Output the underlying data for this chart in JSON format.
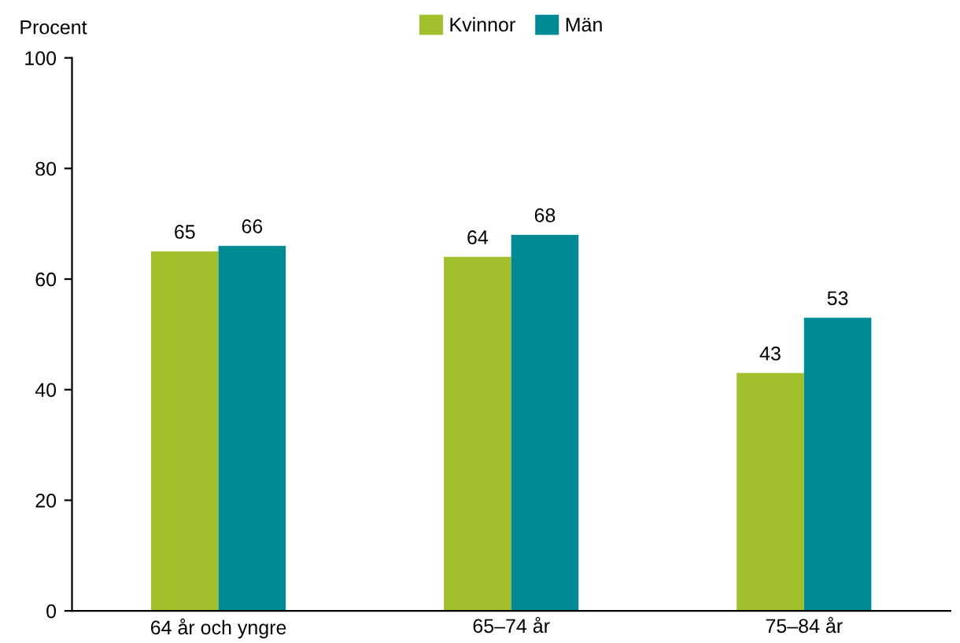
{
  "chart_data": {
    "type": "bar",
    "ylabel": "Procent",
    "categories": [
      "64 år och yngre",
      "65–74 år",
      "75–84 år"
    ],
    "series": [
      {
        "name": "Kvinnor",
        "color": "#a0bf2a",
        "values": [
          65,
          64,
          43
        ]
      },
      {
        "name": "Män",
        "color": "#008a93",
        "values": [
          66,
          68,
          53
        ]
      }
    ],
    "ylim": [
      0,
      100
    ],
    "yticks": [
      0,
      20,
      40,
      60,
      80,
      100
    ],
    "data_labels": true,
    "grid": false,
    "legend": "top"
  }
}
